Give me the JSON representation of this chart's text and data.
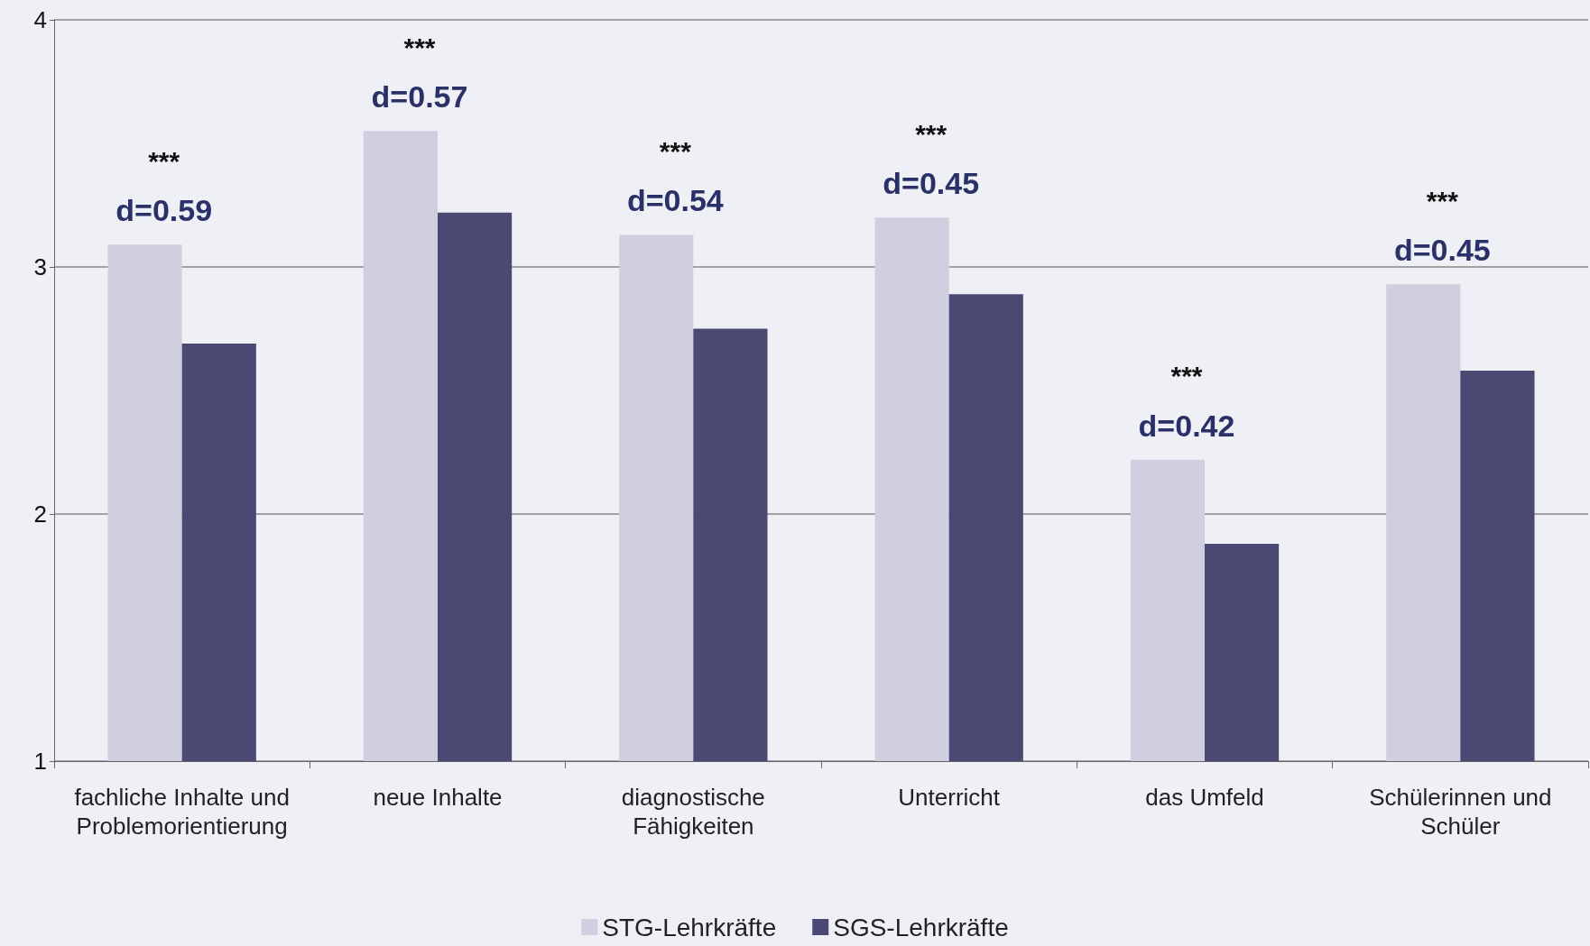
{
  "chart_data": {
    "type": "bar",
    "categories": [
      "fachliche Inhalte und\nProblemorientierung",
      "neue Inhalte",
      "diagnostische\nFähigkeiten",
      "Unterricht",
      "das Umfeld",
      "Schülerinnen und\nSchüler"
    ],
    "series": [
      {
        "name": "STG-Lehrkräfte",
        "color": "#d0cfe0",
        "values": [
          3.09,
          3.55,
          3.13,
          3.2,
          2.22,
          2.93
        ]
      },
      {
        "name": "SGS-Lehrkräfte",
        "color": "#4b4873",
        "values": [
          2.69,
          3.22,
          2.75,
          2.89,
          1.88,
          2.58
        ]
      }
    ],
    "ylim": [
      1,
      4
    ],
    "yticks": [
      1,
      2,
      3,
      4
    ],
    "grid": "y",
    "legend": "bottom",
    "annotations": [
      "***",
      "d=0.59",
      "***",
      "d=0.57",
      "***",
      "d=0.54",
      "***",
      "d=0.45",
      "***",
      "d=0.42",
      "***",
      "d=0.45"
    ]
  }
}
